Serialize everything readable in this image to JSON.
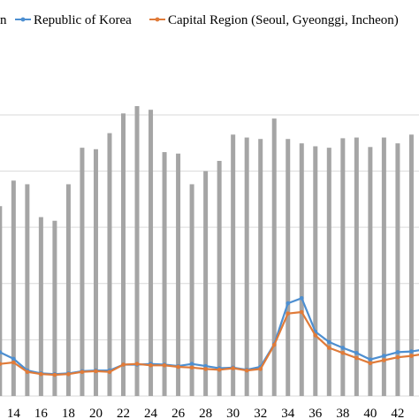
{
  "chart_data": {
    "type": "bar",
    "grid": true,
    "legend_position": "top",
    "ylim": [
      0,
      4.6
    ],
    "x": [
      12,
      13,
      14,
      15,
      16,
      17,
      18,
      19,
      20,
      21,
      22,
      23,
      24,
      25,
      26,
      27,
      28,
      29,
      30,
      31,
      32,
      33,
      34,
      35,
      36,
      37,
      38,
      39,
      40,
      41,
      42,
      43,
      44
    ],
    "x_tick_labels": [
      "14",
      "16",
      "18",
      "20",
      "22",
      "24",
      "26",
      "28",
      "30",
      "32",
      "34",
      "36",
      "38",
      "40",
      "42"
    ],
    "legend_cut_label": "n",
    "series": [
      {
        "kind": "bar",
        "color": "#a5a5a5",
        "values": [
          2.45,
          2.6,
          2.95,
          2.9,
          2.45,
          2.4,
          2.9,
          3.4,
          3.38,
          3.6,
          3.87,
          3.97,
          3.92,
          3.34,
          3.32,
          2.9,
          3.08,
          3.22,
          3.58,
          3.54,
          3.52,
          3.8,
          3.52,
          3.46,
          3.42,
          3.4,
          3.53,
          3.54,
          3.41,
          3.54,
          3.46,
          3.58,
          3.7
        ]
      },
      {
        "kind": "line",
        "name": "Republic of Korea",
        "color": "#4d8fd1",
        "values": [
          0.52,
          0.6,
          0.51,
          0.35,
          0.31,
          0.3,
          0.31,
          0.34,
          0.35,
          0.35,
          0.43,
          0.43,
          0.44,
          0.43,
          0.41,
          0.44,
          0.41,
          0.38,
          0.39,
          0.36,
          0.4,
          0.71,
          1.27,
          1.34,
          0.88,
          0.74,
          0.66,
          0.59,
          0.5,
          0.55,
          0.6,
          0.61,
          0.64
        ]
      },
      {
        "kind": "line",
        "name": "Capital Region (Seoul, Gyeonggi, Incheon)",
        "color": "#e07b39",
        "values": [
          0.44,
          0.44,
          0.46,
          0.33,
          0.3,
          0.29,
          0.3,
          0.33,
          0.34,
          0.33,
          0.43,
          0.44,
          0.42,
          0.42,
          0.4,
          0.39,
          0.37,
          0.36,
          0.38,
          0.35,
          0.37,
          0.7,
          1.13,
          1.15,
          0.83,
          0.66,
          0.59,
          0.52,
          0.45,
          0.49,
          0.53,
          0.55,
          0.58
        ]
      }
    ]
  }
}
